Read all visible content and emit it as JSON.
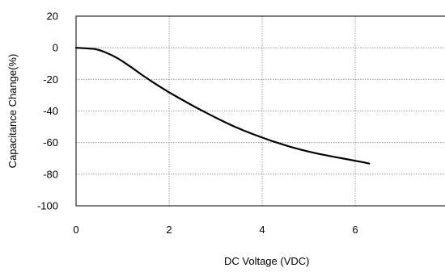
{
  "chart_data": {
    "type": "line",
    "title": "",
    "xlabel": "DC Voltage (VDC)",
    "ylabel": "Capacitance Change(%)",
    "xlim": [
      0,
      8
    ],
    "ylim": [
      -100,
      20
    ],
    "x_ticks": [
      0,
      2,
      4,
      6
    ],
    "y_ticks": [
      20,
      0,
      -20,
      -40,
      -60,
      -80,
      -100
    ],
    "x_tick_labels": [
      "0",
      "2",
      "4",
      "6"
    ],
    "y_tick_labels": [
      "20",
      "0",
      "-20",
      "-40",
      "-60",
      "-80",
      "-100"
    ],
    "x_grid": [
      2,
      4,
      6,
      8
    ],
    "y_grid": [
      20,
      0,
      -20,
      -40,
      -60,
      -80
    ],
    "grid": true,
    "legend": "none",
    "series": [
      {
        "color": "#000000",
        "x": [
          0,
          0.2,
          0.4,
          0.5,
          0.6,
          0.7,
          0.8,
          0.9,
          1.0,
          1.2,
          1.4,
          1.6,
          1.8,
          2.0,
          2.2,
          2.4,
          2.6,
          2.8,
          3.0,
          3.2,
          3.4,
          3.6,
          3.8,
          4.0,
          4.2,
          4.4,
          4.6,
          4.8,
          5.0,
          5.2,
          5.4,
          5.6,
          5.8,
          6.0,
          6.2,
          6.3
        ],
        "y": [
          0,
          -0.3,
          -0.8,
          -1.5,
          -2.5,
          -3.8,
          -5.2,
          -6.8,
          -8.6,
          -12.6,
          -16.8,
          -20.8,
          -24.6,
          -28.2,
          -31.6,
          -34.9,
          -38.1,
          -41.2,
          -44.2,
          -47.1,
          -49.8,
          -52.3,
          -54.6,
          -56.8,
          -58.9,
          -60.8,
          -62.6,
          -64.2,
          -65.7,
          -67.0,
          -68.2,
          -69.3,
          -70.4,
          -71.5,
          -72.6,
          -73.3
        ]
      }
    ]
  }
}
